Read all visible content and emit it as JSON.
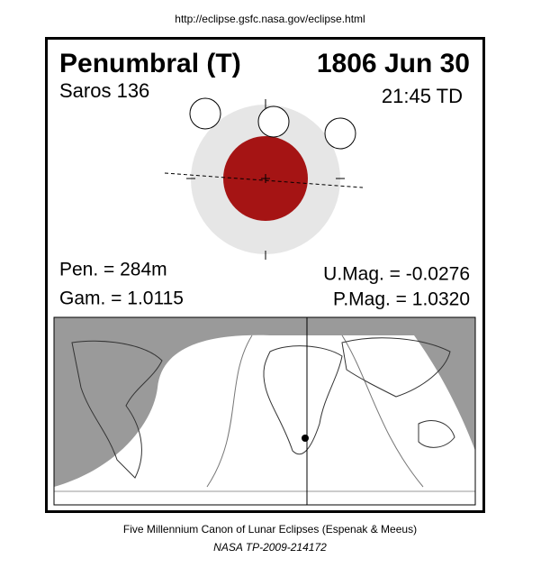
{
  "header": {
    "url": "http://eclipse.gsfc.nasa.gov/eclipse.html"
  },
  "eclipse": {
    "type": "Penumbral (T)",
    "date": "1806 Jun 30",
    "saros": "Saros 136",
    "time": "21:45 TD",
    "pen": "Pen. = 284m",
    "gam": "Gam. = 1.0115",
    "umag": "U.Mag. = -0.0276",
    "pmag": "P.Mag. = 1.0320"
  },
  "footer": {
    "canon": "Five Millennium Canon of Lunar Eclipses (Espenak & Meeus)",
    "publication": "NASA TP-2009-214172"
  }
}
